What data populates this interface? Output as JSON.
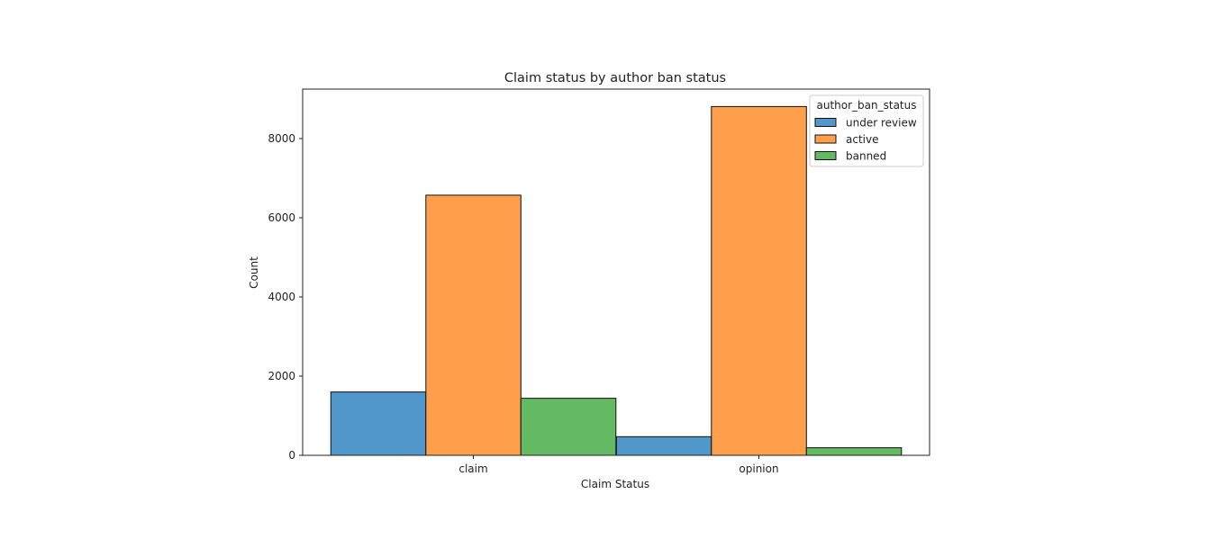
{
  "chart_data": {
    "type": "bar",
    "title": "Claim status by author ban status",
    "xlabel": "Claim Status",
    "ylabel": "Count",
    "categories": [
      "claim",
      "opinion"
    ],
    "series": [
      {
        "name": "under review",
        "values": [
          1600,
          470
        ],
        "color": "#5197c9"
      },
      {
        "name": "active",
        "values": [
          6570,
          8810
        ],
        "color": "#ff9f4b"
      },
      {
        "name": "banned",
        "values": [
          1440,
          190
        ],
        "color": "#64b963"
      }
    ],
    "ylim": [
      0,
      9250
    ],
    "yticks": [
      0,
      2000,
      4000,
      6000,
      8000
    ],
    "ytick_labels": [
      "0",
      "2000",
      "4000",
      "6000",
      "8000"
    ],
    "legend": {
      "title": "author_ban_status",
      "position": "top-right"
    },
    "grid": false
  }
}
